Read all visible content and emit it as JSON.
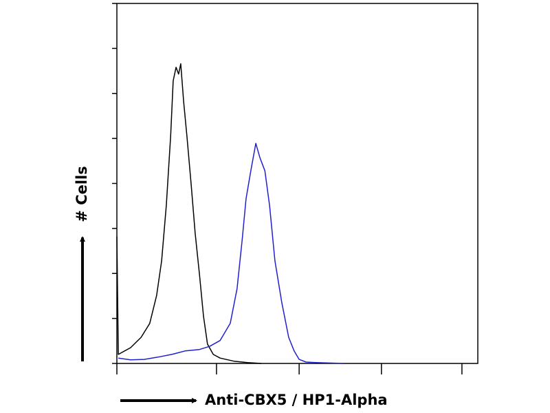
{
  "chart_data": {
    "type": "line",
    "ylabel": "# Cells",
    "xlabel": "Anti-CBX5 / HP1-Alpha",
    "xlim": [
      0,
      1000
    ],
    "ylim": [
      0,
      8
    ],
    "xticks": [
      0,
      276,
      505,
      733,
      956
    ],
    "yticks": [
      0,
      1,
      2,
      3,
      4,
      5,
      6,
      7,
      8
    ],
    "series": [
      {
        "color": "#000000",
        "x": [
          0,
          4,
          38,
          67,
          91,
          110,
          124,
          137,
          149,
          156,
          164,
          171,
          177,
          185,
          194,
          206,
          217,
          229,
          240,
          251,
          267,
          286,
          324,
          362,
          400
        ],
        "values": [
          2.82,
          0.2,
          0.35,
          0.58,
          0.89,
          1.51,
          2.28,
          3.51,
          5.05,
          6.28,
          6.58,
          6.43,
          6.66,
          5.82,
          5.05,
          3.97,
          2.89,
          1.97,
          1.05,
          0.43,
          0.2,
          0.12,
          0.05,
          0.02,
          0
        ]
      },
      {
        "color": "#1f1fd0",
        "x": [
          4,
          38,
          76,
          114,
          152,
          190,
          229,
          257,
          286,
          314,
          333,
          347,
          358,
          371,
          385,
          396,
          410,
          423,
          438,
          457,
          476,
          491,
          505,
          524,
          552,
          629
        ],
        "values": [
          0.12,
          0.08,
          0.09,
          0.14,
          0.2,
          0.28,
          0.31,
          0.38,
          0.51,
          0.89,
          1.66,
          2.74,
          3.66,
          4.28,
          4.89,
          4.58,
          4.28,
          3.51,
          2.28,
          1.35,
          0.58,
          0.28,
          0.09,
          0.03,
          0.02,
          0
        ]
      }
    ]
  }
}
